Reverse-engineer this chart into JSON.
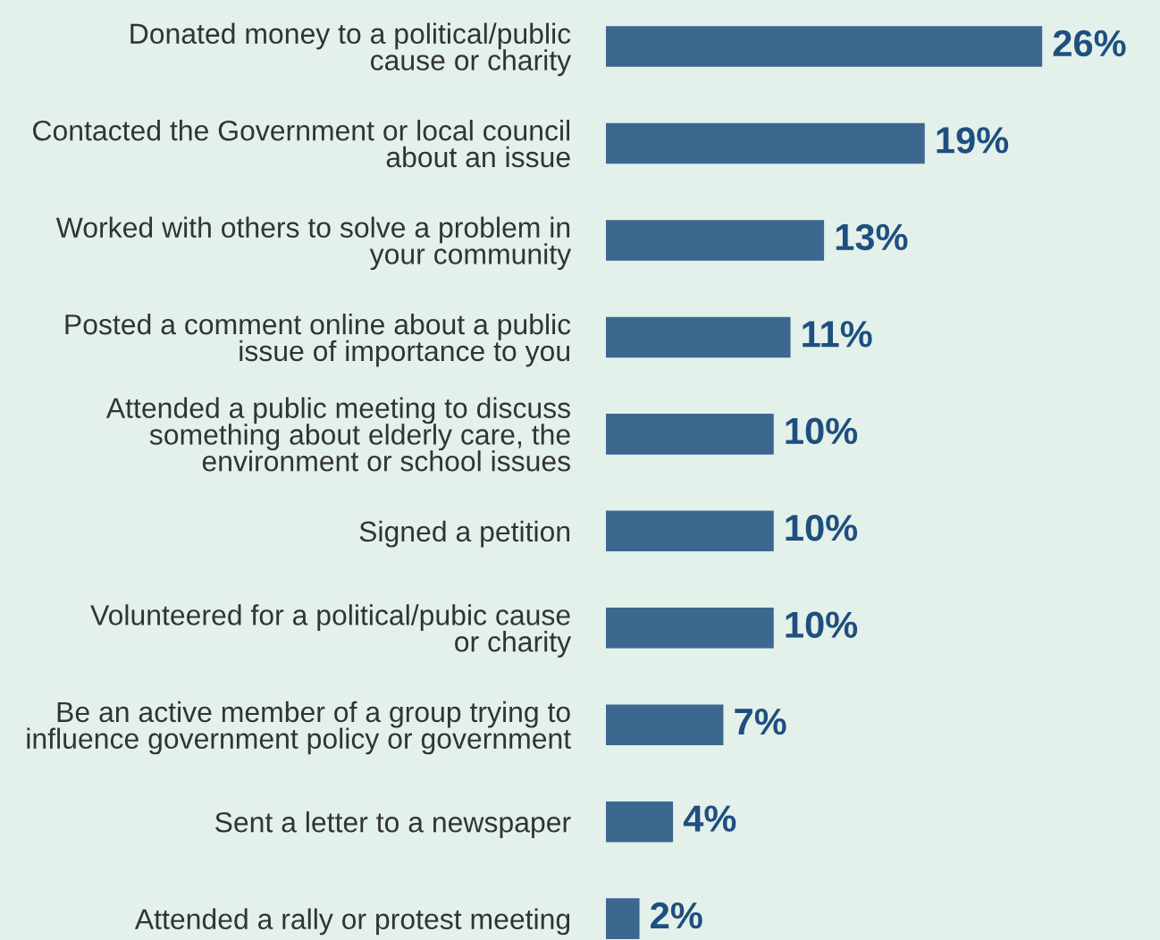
{
  "chart_data": {
    "type": "bar",
    "orientation": "horizontal",
    "categories": [
      "Donated money to a political/public\ncause or charity",
      "Contacted the Government or local council\nabout an issue",
      "Worked with others to solve a problem in\nyour community",
      "Posted a comment online about a public\nissue of importance to you",
      "Attended a public meeting to discuss\nsomething about elderly care, the\nenvironment or school issues",
      "Signed a petition",
      "Volunteered for a political/pubic cause\nor charity",
      "Be an active member of a group trying to\ninfluence government policy or government",
      "Sent a letter to a newspaper",
      "Attended a rally or protest meeting"
    ],
    "values": [
      26,
      19,
      13,
      11,
      10,
      10,
      10,
      7,
      4,
      2
    ],
    "value_labels": [
      "26%",
      "19%",
      "13%",
      "11%",
      "10%",
      "10%",
      "10%",
      "7%",
      "4%",
      "2%"
    ],
    "color": "#3c6890"
  }
}
